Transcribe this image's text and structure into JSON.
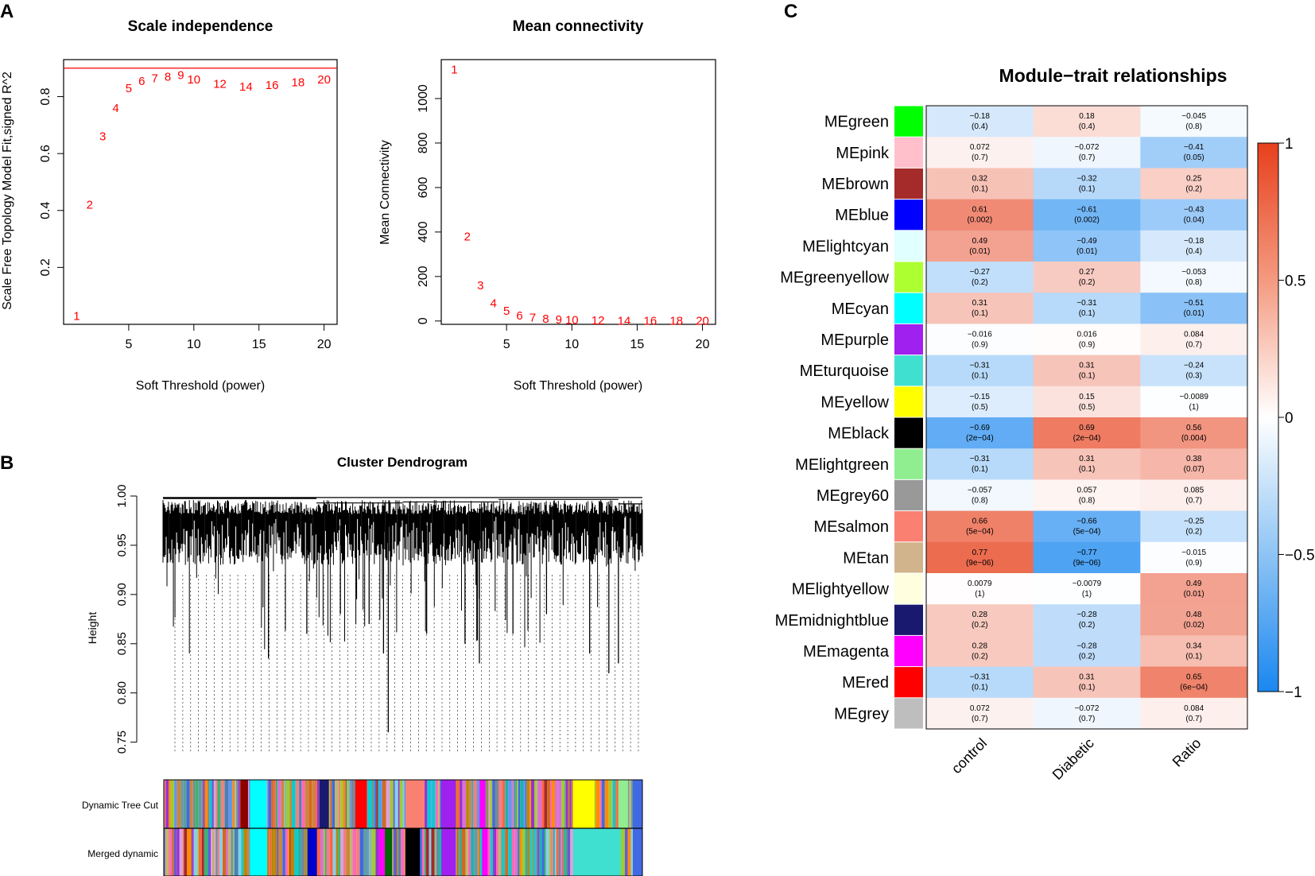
{
  "panels": {
    "a": "A",
    "b": "B",
    "c": "C"
  },
  "chart_data": [
    {
      "id": "scale",
      "type": "scatter",
      "title": "Scale independence",
      "xlabel": "Soft Threshold (power)",
      "ylabel": "Scale Free Topology Model Fit,signed R^2",
      "xlim": [
        0,
        21
      ],
      "ylim": [
        0,
        0.93
      ],
      "xticks": [
        5,
        10,
        15,
        20
      ],
      "yticks": [
        0.2,
        0.4,
        0.6,
        0.8
      ],
      "hline": 0.9,
      "point_color": "#ff0000",
      "x": [
        1,
        2,
        3,
        4,
        5,
        6,
        7,
        8,
        9,
        10,
        12,
        14,
        16,
        18,
        20
      ],
      "y": [
        0.03,
        0.42,
        0.66,
        0.76,
        0.83,
        0.855,
        0.865,
        0.87,
        0.875,
        0.86,
        0.845,
        0.835,
        0.84,
        0.85,
        0.86
      ],
      "labels": [
        "1",
        "2",
        "3",
        "4",
        "5",
        "6",
        "7",
        "8",
        "9",
        "10",
        "12",
        "14",
        "16",
        "18",
        "20"
      ]
    },
    {
      "id": "conn",
      "type": "scatter",
      "title": "Mean connectivity",
      "xlabel": "Soft Threshold (power)",
      "ylabel": "Mean Connectivity",
      "xlim": [
        0,
        21
      ],
      "ylim": [
        -15,
        1175
      ],
      "xticks": [
        5,
        10,
        15,
        20
      ],
      "yticks": [
        0,
        200,
        400,
        600,
        800,
        1000
      ],
      "point_color": "#ff0000",
      "x": [
        1,
        2,
        3,
        4,
        5,
        6,
        7,
        8,
        9,
        10,
        12,
        14,
        16,
        18,
        20
      ],
      "y": [
        1130,
        380,
        160,
        80,
        45,
        25,
        15,
        10,
        6,
        5,
        2,
        1,
        1,
        0.5,
        0.4
      ],
      "labels": [
        "1",
        "2",
        "3",
        "4",
        "5",
        "6",
        "7",
        "8",
        "9",
        "10",
        "12",
        "14",
        "16",
        "18",
        "20"
      ]
    },
    {
      "id": "dendro",
      "type": "dendrogram",
      "title": "Cluster Dendrogram",
      "ylabel": "Height",
      "ylim": [
        0.74,
        1.0
      ],
      "yticks": [
        0.75,
        0.8,
        0.85,
        0.9,
        0.95,
        1.0
      ],
      "ytick_labels": [
        "0.75",
        "0.80",
        "0.85",
        "0.90",
        "0.95",
        "1.00"
      ],
      "row_labels": [
        "Dynamic Tree Cut",
        "Merged dynamic"
      ],
      "dynamic_colors": [
        "#a52a2a",
        "#87ceeb",
        "#ff69b4",
        "#3cb371",
        "#dda0dd",
        "#4682b4",
        "#ff8c00",
        "#9932cc",
        "#20b2aa",
        "#cd853f",
        "#6495ed",
        "#da70d6",
        "#b8860b",
        "#5f9ea0",
        "#f08080",
        "#8fbc8f",
        "#778899",
        "#bdb76b",
        "#4169e1",
        "#d2691e",
        "#00ced1",
        "#ff6347",
        "#9acd32",
        "#6a5acd"
      ],
      "dynamic_blocks": [
        {
          "c": "#8b0000",
          "a": 0.16,
          "w": 0.016
        },
        {
          "c": "#00ffff",
          "a": 0.18,
          "w": 0.036
        },
        {
          "c": "#191970",
          "a": 0.325,
          "w": 0.02
        },
        {
          "c": "#ff0000",
          "a": 0.4,
          "w": 0.024
        },
        {
          "c": "#fa8072",
          "a": 0.505,
          "w": 0.04
        },
        {
          "c": "#a020f0",
          "a": 0.58,
          "w": 0.03
        },
        {
          "c": "#ff00ff",
          "a": 0.66,
          "w": 0.012
        },
        {
          "c": "#ffff00",
          "a": 0.855,
          "w": 0.045
        },
        {
          "c": "#90ee90",
          "a": 0.95,
          "w": 0.02
        },
        {
          "c": "#4169e1",
          "a": 0.98,
          "w": 0.02
        }
      ],
      "merged_blocks": [
        {
          "c": "#00ffff",
          "a": 0.18,
          "w": 0.036
        },
        {
          "c": "#0000cd",
          "a": 0.3,
          "w": 0.02
        },
        {
          "c": "#ff00ff",
          "a": 0.45,
          "w": 0.012
        },
        {
          "c": "#006400",
          "a": 0.462,
          "w": 0.015
        },
        {
          "c": "#000000",
          "a": 0.505,
          "w": 0.03
        },
        {
          "c": "#a020f0",
          "a": 0.58,
          "w": 0.03
        },
        {
          "c": "#ff00ff",
          "a": 0.665,
          "w": 0.012
        },
        {
          "c": "#40e0d0",
          "a": 0.855,
          "w": 0.1
        },
        {
          "c": "#4169e1",
          "a": 0.98,
          "w": 0.02
        }
      ]
    },
    {
      "id": "heatmap",
      "type": "heatmap",
      "title": "Module−trait relationships",
      "columns": [
        "control",
        "Diabetic",
        "Ratio"
      ],
      "legend": {
        "ticks": [
          "1",
          "0.5",
          "0",
          "−0.5",
          "−1"
        ]
      },
      "rows": [
        {
          "name": "MEgreen",
          "color": "#00ff00",
          "cells": [
            {
              "r": -0.18,
              "t": "−0.18",
              "p": "(0.4)"
            },
            {
              "r": 0.18,
              "t": "0.18",
              "p": "(0.4)"
            },
            {
              "r": -0.045,
              "t": "−0.045",
              "p": "(0.8)"
            }
          ]
        },
        {
          "name": "MEpink",
          "color": "#ffc0cb",
          "cells": [
            {
              "r": 0.072,
              "t": "0.072",
              "p": "(0.7)"
            },
            {
              "r": -0.072,
              "t": "−0.072",
              "p": "(0.7)"
            },
            {
              "r": -0.41,
              "t": "−0.41",
              "p": "(0.05)"
            }
          ]
        },
        {
          "name": "MEbrown",
          "color": "#a52a2a",
          "cells": [
            {
              "r": 0.32,
              "t": "0.32",
              "p": "(0.1)"
            },
            {
              "r": -0.32,
              "t": "−0.32",
              "p": "(0.1)"
            },
            {
              "r": 0.25,
              "t": "0.25",
              "p": "(0.2)"
            }
          ]
        },
        {
          "name": "MEblue",
          "color": "#0000ff",
          "cells": [
            {
              "r": 0.61,
              "t": "0.61",
              "p": "(0.002)"
            },
            {
              "r": -0.61,
              "t": "−0.61",
              "p": "(0.002)"
            },
            {
              "r": -0.43,
              "t": "−0.43",
              "p": "(0.04)"
            }
          ]
        },
        {
          "name": "MElightcyan",
          "color": "#e0ffff",
          "cells": [
            {
              "r": 0.49,
              "t": "0.49",
              "p": "(0.01)"
            },
            {
              "r": -0.49,
              "t": "−0.49",
              "p": "(0.01)"
            },
            {
              "r": -0.18,
              "t": "−0.18",
              "p": "(0.4)"
            }
          ]
        },
        {
          "name": "MEgreenyellow",
          "color": "#adff2f",
          "cells": [
            {
              "r": -0.27,
              "t": "−0.27",
              "p": "(0.2)"
            },
            {
              "r": 0.27,
              "t": "0.27",
              "p": "(0.2)"
            },
            {
              "r": -0.053,
              "t": "−0.053",
              "p": "(0.8)"
            }
          ]
        },
        {
          "name": "MEcyan",
          "color": "#00ffff",
          "cells": [
            {
              "r": 0.31,
              "t": "0.31",
              "p": "(0.1)"
            },
            {
              "r": -0.31,
              "t": "−0.31",
              "p": "(0.1)"
            },
            {
              "r": -0.51,
              "t": "−0.51",
              "p": "(0.01)"
            }
          ]
        },
        {
          "name": "MEpurple",
          "color": "#a020f0",
          "cells": [
            {
              "r": -0.016,
              "t": "−0.016",
              "p": "(0.9)"
            },
            {
              "r": 0.016,
              "t": "0.016",
              "p": "(0.9)"
            },
            {
              "r": 0.084,
              "t": "0.084",
              "p": "(0.7)"
            }
          ]
        },
        {
          "name": "MEturquoise",
          "color": "#40e0d0",
          "cells": [
            {
              "r": -0.31,
              "t": "−0.31",
              "p": "(0.1)"
            },
            {
              "r": 0.31,
              "t": "0.31",
              "p": "(0.1)"
            },
            {
              "r": -0.24,
              "t": "−0.24",
              "p": "(0.3)"
            }
          ]
        },
        {
          "name": "MEyellow",
          "color": "#ffff00",
          "cells": [
            {
              "r": -0.15,
              "t": "−0.15",
              "p": "(0.5)"
            },
            {
              "r": 0.15,
              "t": "0.15",
              "p": "(0.5)"
            },
            {
              "r": -0.0089,
              "t": "−0.0089",
              "p": "(1)"
            }
          ]
        },
        {
          "name": "MEblack",
          "color": "#000000",
          "cells": [
            {
              "r": -0.69,
              "t": "−0.69",
              "p": "(2e−04)"
            },
            {
              "r": 0.69,
              "t": "0.69",
              "p": "(2e−04)"
            },
            {
              "r": 0.56,
              "t": "0.56",
              "p": "(0.004)"
            }
          ]
        },
        {
          "name": "MElightgreen",
          "color": "#90ee90",
          "cells": [
            {
              "r": -0.31,
              "t": "−0.31",
              "p": "(0.1)"
            },
            {
              "r": 0.31,
              "t": "0.31",
              "p": "(0.1)"
            },
            {
              "r": 0.38,
              "t": "0.38",
              "p": "(0.07)"
            }
          ]
        },
        {
          "name": "MEgrey60",
          "color": "#999999",
          "cells": [
            {
              "r": -0.057,
              "t": "−0.057",
              "p": "(0.8)"
            },
            {
              "r": 0.057,
              "t": "0.057",
              "p": "(0.8)"
            },
            {
              "r": 0.085,
              "t": "0.085",
              "p": "(0.7)"
            }
          ]
        },
        {
          "name": "MEsalmon",
          "color": "#fa8072",
          "cells": [
            {
              "r": 0.66,
              "t": "0.66",
              "p": "(5e−04)"
            },
            {
              "r": -0.66,
              "t": "−0.66",
              "p": "(5e−04)"
            },
            {
              "r": -0.25,
              "t": "−0.25",
              "p": "(0.2)"
            }
          ]
        },
        {
          "name": "MEtan",
          "color": "#d2b48c",
          "cells": [
            {
              "r": 0.77,
              "t": "0.77",
              "p": "(9e−06)"
            },
            {
              "r": -0.77,
              "t": "−0.77",
              "p": "(9e−06)"
            },
            {
              "r": -0.015,
              "t": "−0.015",
              "p": "(0.9)"
            }
          ]
        },
        {
          "name": "MElightyellow",
          "color": "#ffffe0",
          "cells": [
            {
              "r": 0.0079,
              "t": "0.0079",
              "p": "(1)"
            },
            {
              "r": -0.0079,
              "t": "−0.0079",
              "p": "(1)"
            },
            {
              "r": 0.49,
              "t": "0.49",
              "p": "(0.01)"
            }
          ]
        },
        {
          "name": "MEmidnightblue",
          "color": "#191970",
          "cells": [
            {
              "r": 0.28,
              "t": "0.28",
              "p": "(0.2)"
            },
            {
              "r": -0.28,
              "t": "−0.28",
              "p": "(0.2)"
            },
            {
              "r": 0.48,
              "t": "0.48",
              "p": "(0.02)"
            }
          ]
        },
        {
          "name": "MEmagenta",
          "color": "#ff00ff",
          "cells": [
            {
              "r": 0.28,
              "t": "0.28",
              "p": "(0.2)"
            },
            {
              "r": -0.28,
              "t": "−0.28",
              "p": "(0.2)"
            },
            {
              "r": 0.34,
              "t": "0.34",
              "p": "(0.1)"
            }
          ]
        },
        {
          "name": "MEred",
          "color": "#ff0000",
          "cells": [
            {
              "r": -0.31,
              "t": "−0.31",
              "p": "(0.1)"
            },
            {
              "r": 0.31,
              "t": "0.31",
              "p": "(0.1)"
            },
            {
              "r": 0.65,
              "t": "0.65",
              "p": "(6e−04)"
            }
          ]
        },
        {
          "name": "MEgrey",
          "color": "#bebebe",
          "cells": [
            {
              "r": 0.072,
              "t": "0.072",
              "p": "(0.7)"
            },
            {
              "r": -0.072,
              "t": "−0.072",
              "p": "(0.7)"
            },
            {
              "r": 0.084,
              "t": "0.084",
              "p": "(0.7)"
            }
          ]
        }
      ]
    }
  ]
}
